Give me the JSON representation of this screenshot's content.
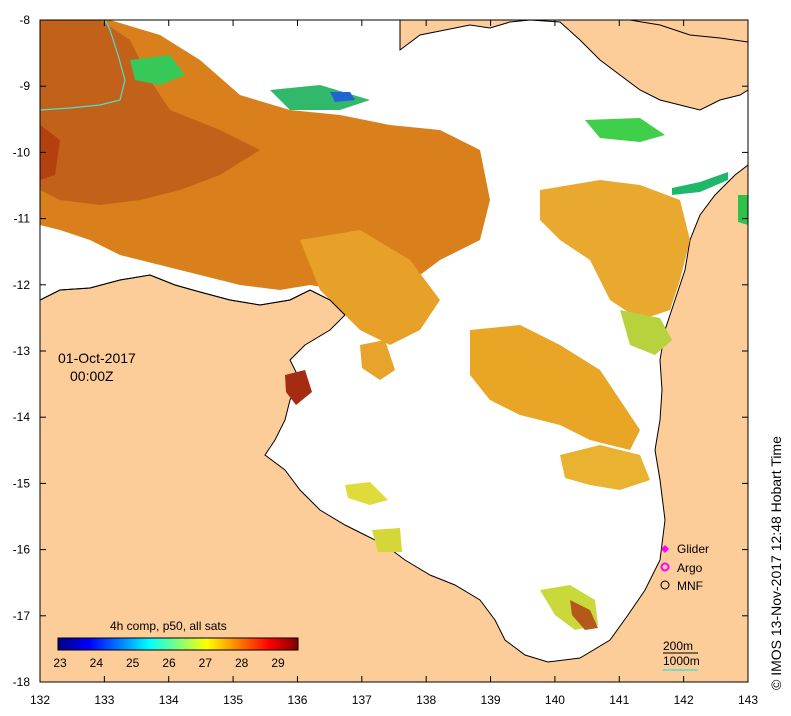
{
  "map": {
    "x_ticks": [
      "132",
      "133",
      "134",
      "135",
      "136",
      "137",
      "138",
      "139",
      "140",
      "141",
      "142",
      "143"
    ],
    "y_ticks": [
      "-8",
      "-9",
      "-10",
      "-11",
      "-12",
      "-13",
      "-14",
      "-15",
      "-16",
      "-17",
      "-18"
    ],
    "date": "01-Oct-2017",
    "time": "00:00Z",
    "land_color": "#fccc99",
    "no_data_color": "#ffffff"
  },
  "colorbar": {
    "title": "4h comp, p50, all sats",
    "ticks": [
      "23",
      "24",
      "25",
      "26",
      "27",
      "28",
      "29"
    ],
    "colors": [
      "#00007f",
      "#0000ff",
      "#007fff",
      "#00ffff",
      "#7fff7f",
      "#ffff00",
      "#ff7f00",
      "#ff0000",
      "#7f0000"
    ]
  },
  "legend": {
    "items": [
      {
        "label": "Glider",
        "color": "#ff00ff",
        "symbol": "diamond"
      },
      {
        "label": "Argo",
        "color": "#ff00ff",
        "symbol": "ring"
      },
      {
        "label": "MNF",
        "color": "#000000",
        "symbol": "circle"
      }
    ],
    "contour_labels": [
      "200m",
      "1000m"
    ]
  },
  "credit": "© IMOS 13-Nov-2017 12:48 Hobart Time"
}
